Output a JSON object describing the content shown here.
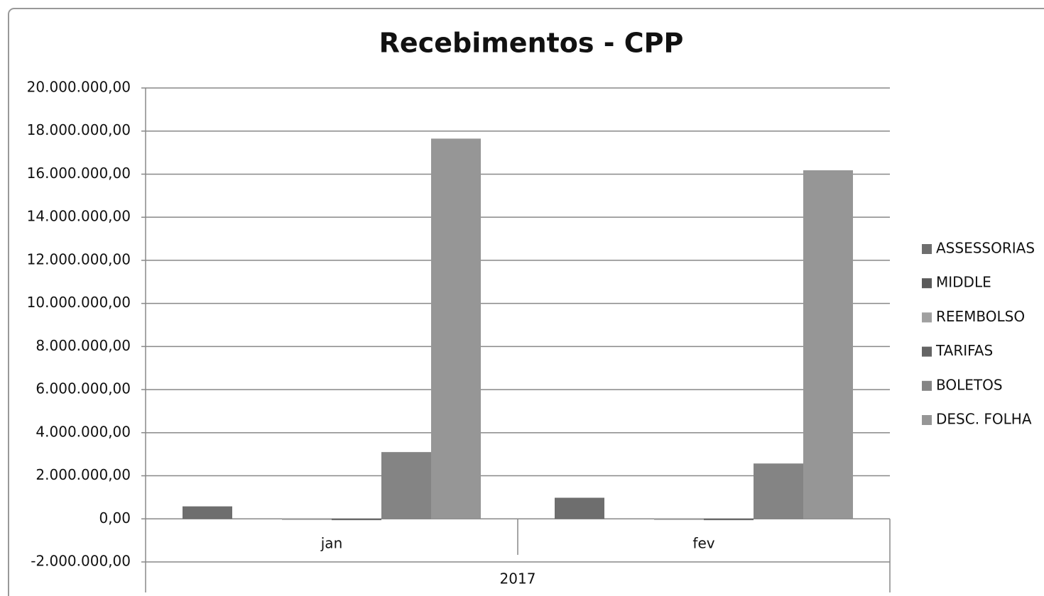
{
  "chart_data": {
    "type": "bar",
    "title": "Recebimentos - CPP",
    "categories": [
      "jan",
      "fev"
    ],
    "group_label": "2017",
    "series": [
      {
        "name": "ASSESSORIAS",
        "color": "#6e6e6e",
        "values": [
          580000,
          980000
        ]
      },
      {
        "name": "MIDDLE",
        "color": "#5a5a5a",
        "values": [
          0,
          0
        ]
      },
      {
        "name": "REEMBOLSO",
        "color": "#a0a0a0",
        "values": [
          -50000,
          -50000
        ]
      },
      {
        "name": "TARIFAS",
        "color": "#646464",
        "values": [
          -60000,
          -60000
        ]
      },
      {
        "name": "BOLETOS",
        "color": "#848484",
        "values": [
          3100000,
          2570000
        ]
      },
      {
        "name": "DESC. FOLHA",
        "color": "#969696",
        "values": [
          17650000,
          16180000
        ]
      }
    ],
    "ylim": [
      -2000000,
      20000000
    ],
    "yticks": [
      {
        "value": -2000000,
        "label": "-2.000.000,00"
      },
      {
        "value": 0,
        "label": "0,00"
      },
      {
        "value": 2000000,
        "label": "2.000.000,00"
      },
      {
        "value": 4000000,
        "label": "4.000.000,00"
      },
      {
        "value": 6000000,
        "label": "6.000.000,00"
      },
      {
        "value": 8000000,
        "label": "8.000.000,00"
      },
      {
        "value": 10000000,
        "label": "10.000.000,00"
      },
      {
        "value": 12000000,
        "label": "12.000.000,00"
      },
      {
        "value": 14000000,
        "label": "14.000.000,00"
      },
      {
        "value": 16000000,
        "label": "16.000.000,00"
      },
      {
        "value": 18000000,
        "label": "18.000.000,00"
      },
      {
        "value": 20000000,
        "label": "20.000.000,00"
      }
    ],
    "grid": true,
    "legend": "right"
  }
}
